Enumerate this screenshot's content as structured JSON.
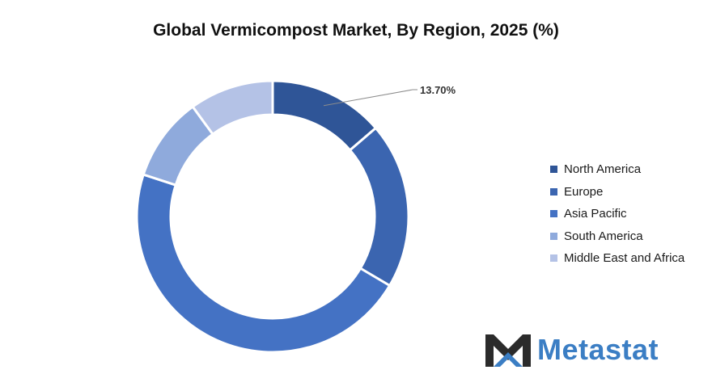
{
  "chart_data": {
    "type": "pie",
    "title": "Global Vermicompost Market, By Region, 2025 (%)",
    "categories": [
      "North America",
      "Europe",
      "Asia Pacific",
      "South America",
      "Middle East and Africa"
    ],
    "values": [
      13.7,
      19.8,
      46.5,
      10.0,
      10.0
    ],
    "colors": [
      "#2f5597",
      "#3b65b0",
      "#4472c4",
      "#8faadc",
      "#b4c2e6"
    ],
    "data_labels": {
      "North America": "13.70%"
    },
    "donut": true,
    "legend_position": "right"
  },
  "branding": {
    "logo_text": "Metastat",
    "logo_icon": "metastat-m-icon"
  }
}
